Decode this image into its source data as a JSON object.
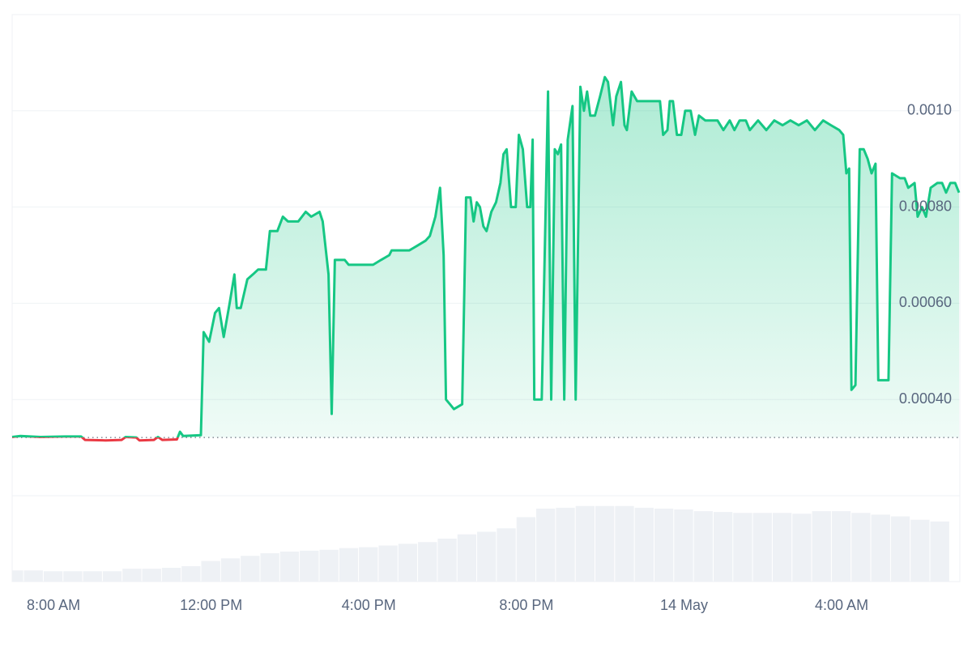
{
  "chart_data": {
    "type": "line",
    "x": [
      6.95,
      7.16,
      7.67,
      8.29,
      8.7,
      8.8,
      9.32,
      9.73,
      9.83,
      10.1,
      10.18,
      10.55,
      10.65,
      10.76,
      11.13,
      11.21,
      11.29,
      11.74,
      11.81,
      11.95,
      12.1,
      12.2,
      12.32,
      12.47,
      12.59,
      12.65,
      12.75,
      12.92,
      13.06,
      13.19,
      13.39,
      13.49,
      13.68,
      13.82,
      13.95,
      14.21,
      14.4,
      14.54,
      14.75,
      14.83,
      14.98,
      15.06,
      15.14,
      15.39,
      15.49,
      15.7,
      16.11,
      16.31,
      16.52,
      16.58,
      16.83,
      17.03,
      17.24,
      17.44,
      17.55,
      17.69,
      17.81,
      17.9,
      17.96,
      18.06,
      18.16,
      18.37,
      18.47,
      18.58,
      18.66,
      18.74,
      18.82,
      18.91,
      18.99,
      19.11,
      19.23,
      19.34,
      19.42,
      19.5,
      19.61,
      19.73,
      19.81,
      19.91,
      20.02,
      20.1,
      20.16,
      20.2,
      20.39,
      20.55,
      20.63,
      20.72,
      20.8,
      20.88,
      20.96,
      21.05,
      21.17,
      21.25,
      21.37,
      21.46,
      21.54,
      21.62,
      21.74,
      21.87,
      21.99,
      22.07,
      22.2,
      22.28,
      22.4,
      22.49,
      22.55,
      22.67,
      22.81,
      23.1,
      23.39,
      23.47,
      23.58,
      23.64,
      23.72,
      23.82,
      23.93,
      24.03,
      24.17,
      24.28,
      24.38,
      24.54,
      24.85,
      25.0,
      25.16,
      25.28,
      25.41,
      25.57,
      25.67,
      25.88,
      26.09,
      26.29,
      26.5,
      26.7,
      26.91,
      27.12,
      27.32,
      27.53,
      27.73,
      27.94,
      28.04,
      28.12,
      28.19,
      28.25,
      28.35,
      28.46,
      28.56,
      28.66,
      28.76,
      28.86,
      28.93,
      29.07,
      29.19,
      29.28,
      29.48,
      29.6,
      29.69,
      29.85,
      29.93,
      30.04,
      30.14,
      30.26,
      30.43,
      30.55,
      30.65,
      30.76,
      30.88,
      30.98
    ],
    "values": [
      0.000322,
      0.000324,
      0.000322,
      0.000323,
      0.000323,
      0.000316,
      0.000315,
      0.000316,
      0.000322,
      0.000321,
      0.000315,
      0.000316,
      0.000322,
      0.000316,
      0.000317,
      0.000333,
      0.000324,
      0.000326,
      0.00054,
      0.00052,
      0.00058,
      0.00059,
      0.00053,
      0.0006,
      0.00066,
      0.00059,
      0.00059,
      0.00065,
      0.00066,
      0.00067,
      0.00067,
      0.00075,
      0.00075,
      0.00078,
      0.00077,
      0.00077,
      0.00079,
      0.00078,
      0.00079,
      0.00077,
      0.00066,
      0.00037,
      0.00069,
      0.00069,
      0.00068,
      0.00068,
      0.00068,
      0.00069,
      0.0007,
      0.00071,
      0.00071,
      0.00071,
      0.00072,
      0.00073,
      0.00074,
      0.00078,
      0.00084,
      0.0007,
      0.0004,
      0.00039,
      0.00038,
      0.00039,
      0.00082,
      0.00082,
      0.00077,
      0.00081,
      0.0008,
      0.00076,
      0.00075,
      0.00079,
      0.00081,
      0.00085,
      0.00091,
      0.00092,
      0.0008,
      0.0008,
      0.00095,
      0.00092,
      0.0008,
      0.0008,
      0.00094,
      0.0004,
      0.0004,
      0.00104,
      0.0004,
      0.00092,
      0.00091,
      0.00093,
      0.0004,
      0.00094,
      0.00101,
      0.0004,
      0.00105,
      0.001,
      0.00104,
      0.00099,
      0.00099,
      0.00103,
      0.00107,
      0.00106,
      0.00097,
      0.00103,
      0.00106,
      0.00097,
      0.00096,
      0.00104,
      0.00102,
      0.00102,
      0.00102,
      0.00095,
      0.00096,
      0.00102,
      0.00102,
      0.00095,
      0.00095,
      0.001,
      0.001,
      0.00095,
      0.00099,
      0.00098,
      0.00098,
      0.00096,
      0.00098,
      0.00096,
      0.00098,
      0.00098,
      0.00096,
      0.00098,
      0.00096,
      0.00098,
      0.00097,
      0.00098,
      0.00097,
      0.00098,
      0.00096,
      0.00098,
      0.00097,
      0.00096,
      0.00095,
      0.00087,
      0.00088,
      0.00042,
      0.00043,
      0.00092,
      0.00092,
      0.0009,
      0.00087,
      0.00089,
      0.00044,
      0.00044,
      0.00044,
      0.00087,
      0.00086,
      0.00086,
      0.00084,
      0.00085,
      0.00078,
      0.0008,
      0.00078,
      0.00084,
      0.00085,
      0.00085,
      0.00083,
      0.00085,
      0.00085,
      0.00083
    ],
    "color": "#16c784",
    "down_color": "#ea3943",
    "baseline": 0.000321,
    "xlim": [
      6.95,
      31
    ],
    "xticks": [
      {
        "value": 8,
        "label": "8:00 AM"
      },
      {
        "value": 12,
        "label": "12:00 PM"
      },
      {
        "value": 16,
        "label": "4:00 PM"
      },
      {
        "value": 20,
        "label": "8:00 PM"
      },
      {
        "value": 24,
        "label": "14 May"
      },
      {
        "value": 28,
        "label": "4:00 AM"
      }
    ],
    "ylim": [
      0.0002,
      0.0012
    ],
    "yticks": [
      {
        "value": 0.0004,
        "label": "0.00040"
      },
      {
        "value": 0.0006,
        "label": "0.00060"
      },
      {
        "value": 0.0008,
        "label": "0.00080"
      },
      {
        "value": 0.001,
        "label": "0.0010"
      }
    ],
    "grid": true,
    "volume": {
      "type": "bar",
      "color": "#eef1f5",
      "ylim": [
        0,
        100
      ],
      "x": [
        7,
        7.5,
        8,
        8.5,
        9,
        9.5,
        10,
        10.5,
        11,
        11.5,
        12,
        12.5,
        13,
        13.5,
        14,
        14.5,
        15,
        15.5,
        16,
        16.5,
        17,
        17.5,
        18,
        18.5,
        19,
        19.5,
        20,
        20.5,
        21,
        21.5,
        22,
        22.5,
        23,
        23.5,
        24,
        24.5,
        25,
        25.5,
        26,
        26.5,
        27,
        27.5,
        28,
        28.5,
        29,
        29.5,
        30,
        30.5
      ],
      "values": [
        13,
        13,
        12,
        12,
        12,
        12,
        15,
        15,
        16,
        18,
        24,
        27,
        30,
        33,
        35,
        36,
        37,
        39,
        40,
        42,
        44,
        46,
        50,
        55,
        58,
        62,
        75,
        85,
        86,
        88,
        88,
        88,
        86,
        85,
        84,
        82,
        81,
        80,
        80,
        80,
        79,
        82,
        82,
        80,
        78,
        76,
        72,
        70
      ]
    }
  }
}
